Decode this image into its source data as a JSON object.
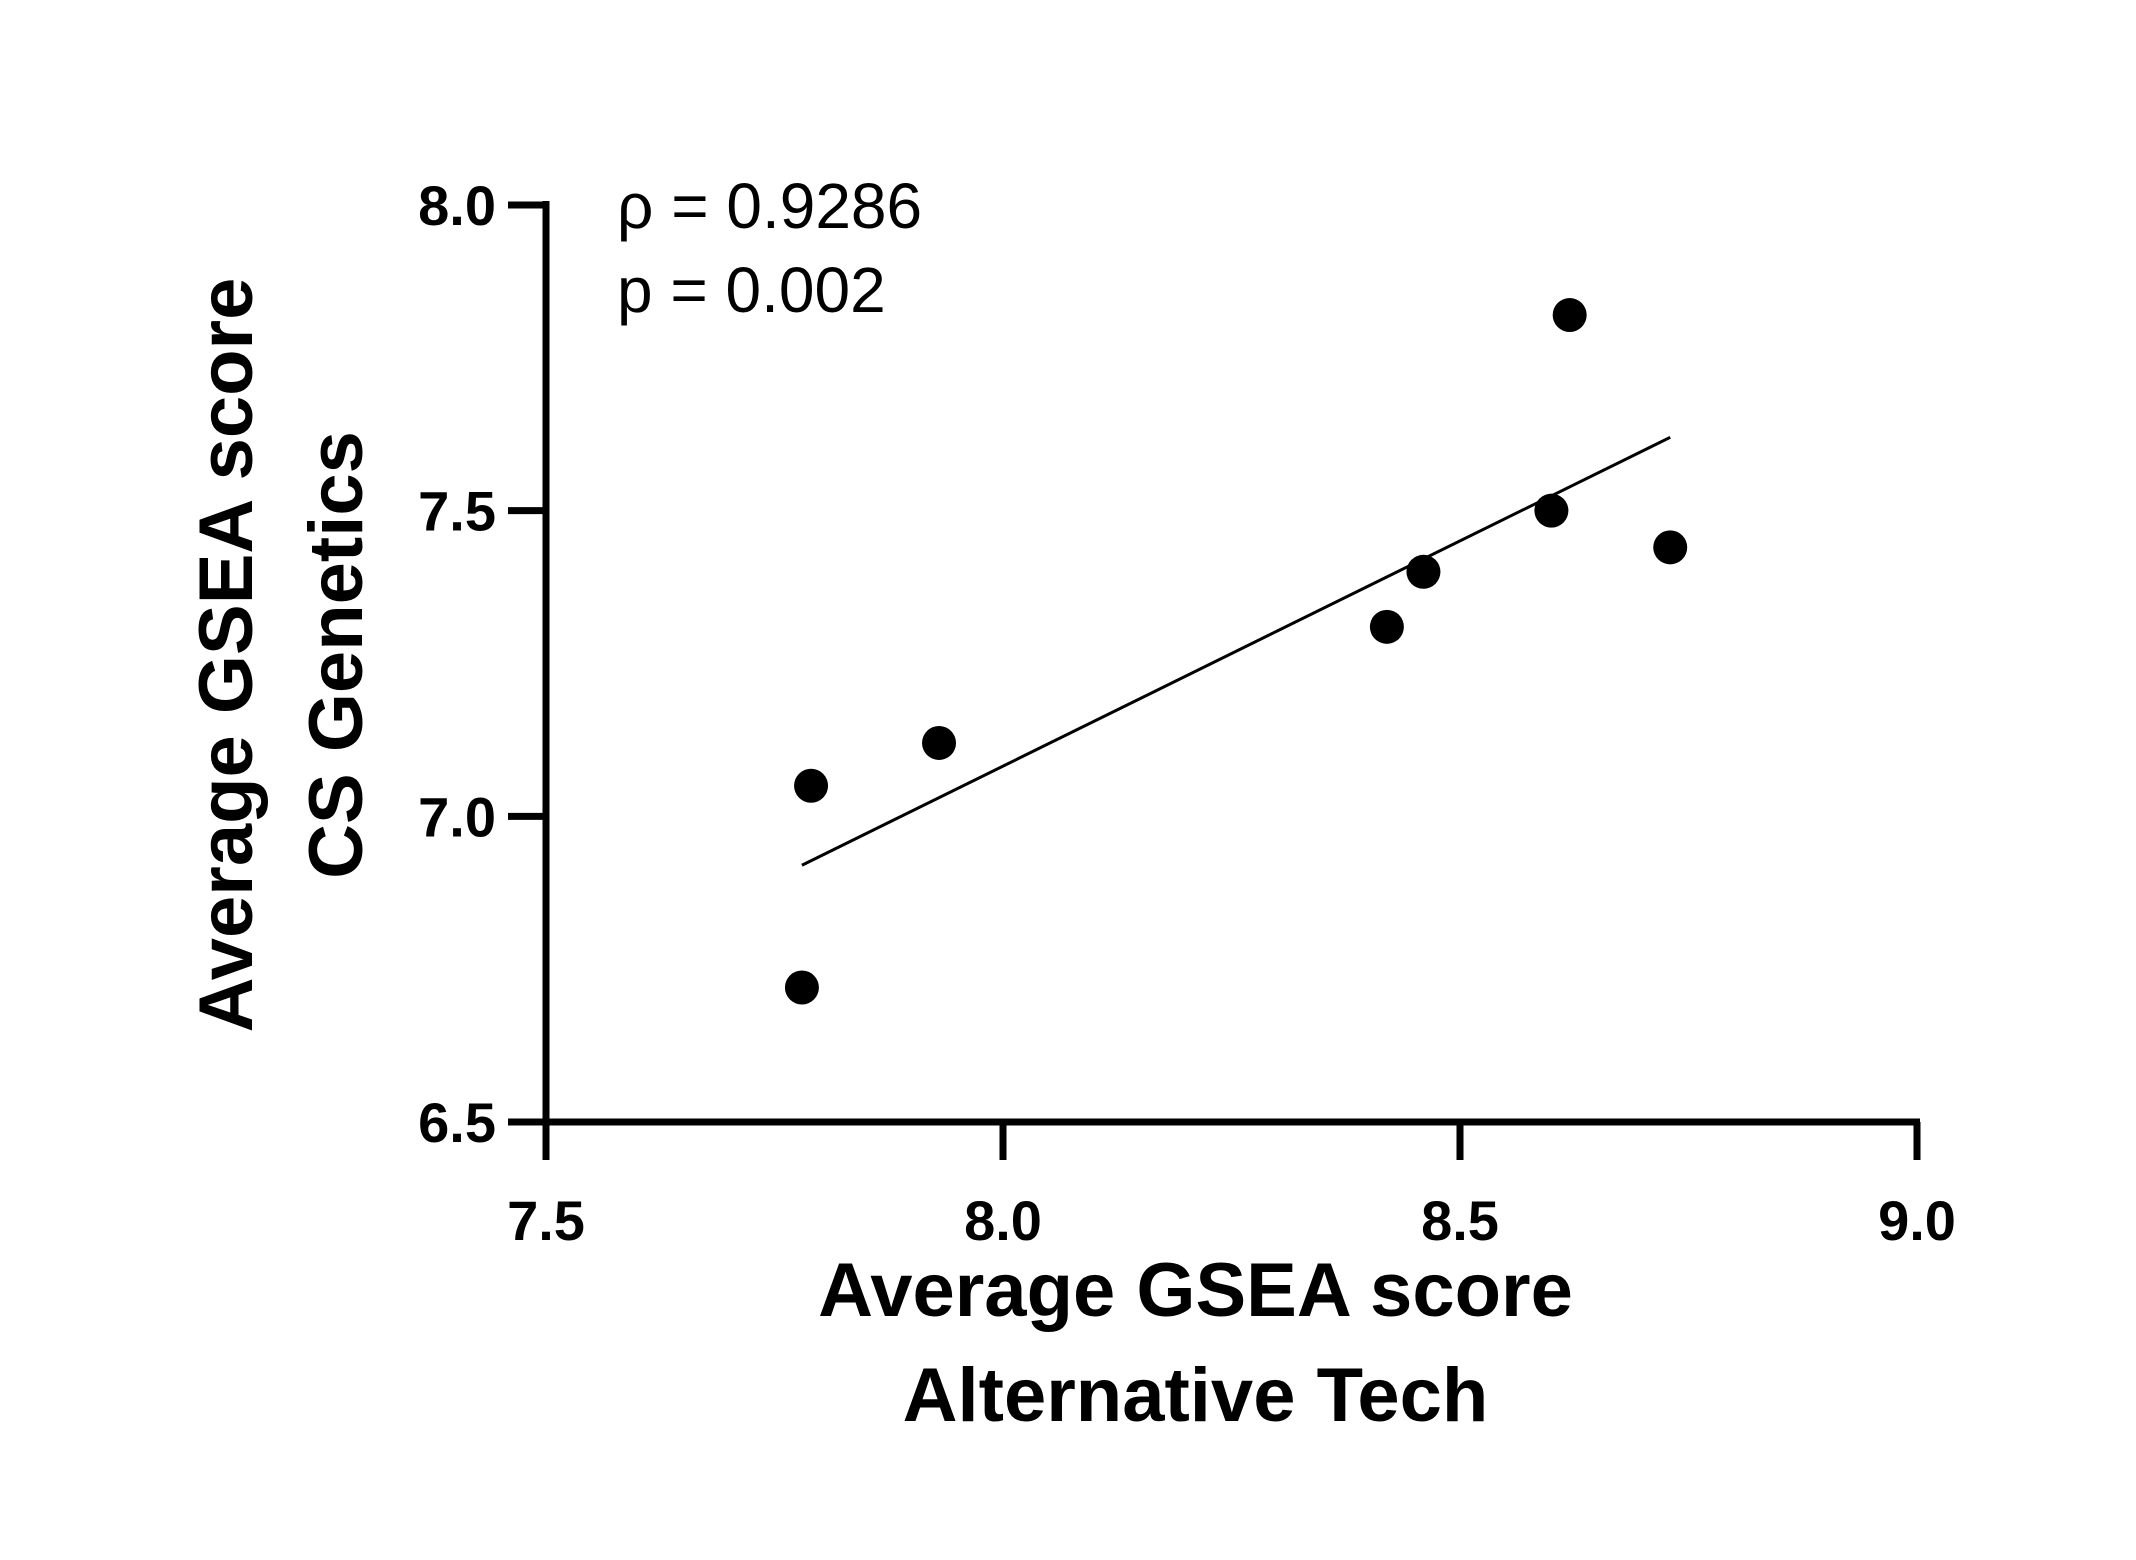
{
  "chart_data": {
    "type": "scatter",
    "xlabel": [
      "Average GSEA score",
      "Alternative Tech"
    ],
    "ylabel": [
      "Average GSEA score",
      "CS Genetics"
    ],
    "xlim": [
      7.5,
      9.0
    ],
    "ylim": [
      6.5,
      8.0
    ],
    "x_ticks": [
      "7.5",
      "8.0",
      "8.5",
      "9.0"
    ],
    "y_ticks": [
      "6.5",
      "7.0",
      "7.5",
      "8.0"
    ],
    "grid": false,
    "annotations": [
      "ρ = 0.9286",
      "p = 0.002"
    ],
    "points": [
      {
        "x": 7.78,
        "y": 6.72
      },
      {
        "x": 7.79,
        "y": 7.05
      },
      {
        "x": 7.93,
        "y": 7.12
      },
      {
        "x": 8.42,
        "y": 7.31
      },
      {
        "x": 8.46,
        "y": 7.4
      },
      {
        "x": 8.6,
        "y": 7.5
      },
      {
        "x": 8.62,
        "y": 7.82
      },
      {
        "x": 8.73,
        "y": 7.44
      }
    ],
    "trendline": {
      "x": [
        7.78,
        8.73
      ],
      "y": [
        6.92,
        7.62
      ]
    },
    "colors": {
      "points": "#000000",
      "axes": "#000000"
    }
  }
}
